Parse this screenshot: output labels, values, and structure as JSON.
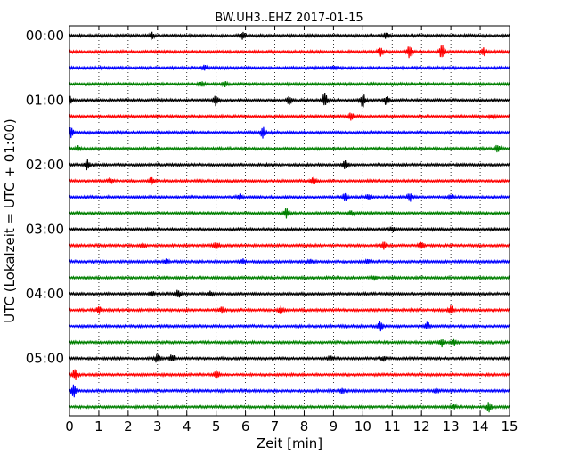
{
  "chart_data": {
    "type": "line",
    "title": "BW.UH3..EHZ 2017-01-15",
    "xlabel": "Zeit  [min]",
    "ylabel": "UTC (Lokalzeit = UTC + 01:00)",
    "xlim": [
      0,
      15
    ],
    "x_ticks": [
      "0",
      "1",
      "2",
      "3",
      "4",
      "5",
      "6",
      "7",
      "8",
      "9",
      "10",
      "11",
      "12",
      "13",
      "14",
      "15"
    ],
    "y_tick_labels": [
      "00:00",
      "01:00",
      "02:00",
      "03:00",
      "04:00",
      "05:00"
    ],
    "trace_interval_minutes": 15,
    "grid": true,
    "colors": [
      "#000000",
      "#ff0000",
      "#0000ff",
      "#008000"
    ],
    "traces": [
      {
        "start": "00:00",
        "color": "#000000",
        "events": [
          [
            2.8,
            0.45
          ],
          [
            5.9,
            0.45
          ],
          [
            10.8,
            0.35
          ]
        ]
      },
      {
        "start": "00:15",
        "color": "#ff0000",
        "events": [
          [
            10.6,
            0.6
          ],
          [
            11.6,
            0.9
          ],
          [
            12.7,
            0.9
          ],
          [
            14.1,
            0.6
          ]
        ]
      },
      {
        "start": "00:30",
        "color": "#0000ff",
        "events": [
          [
            4.6,
            0.3
          ],
          [
            9.0,
            0.2
          ]
        ]
      },
      {
        "start": "00:45",
        "color": "#008000",
        "events": [
          [
            4.5,
            0.3
          ],
          [
            5.3,
            0.3
          ]
        ]
      },
      {
        "start": "01:00",
        "color": "#000000",
        "events": [
          [
            0.0,
            0.6
          ],
          [
            5.0,
            0.7
          ],
          [
            7.5,
            0.5
          ],
          [
            8.7,
            0.9
          ],
          [
            10.0,
            0.9
          ],
          [
            10.8,
            0.6
          ]
        ]
      },
      {
        "start": "01:15",
        "color": "#ff0000",
        "events": [
          [
            9.6,
            0.45
          ],
          [
            14.4,
            0.25
          ]
        ]
      },
      {
        "start": "01:30",
        "color": "#0000ff",
        "events": [
          [
            0.05,
            0.6
          ],
          [
            6.6,
            0.7
          ]
        ]
      },
      {
        "start": "01:45",
        "color": "#008000",
        "events": [
          [
            0.3,
            0.3
          ],
          [
            14.6,
            0.5
          ]
        ]
      },
      {
        "start": "02:00",
        "color": "#000000",
        "events": [
          [
            0.6,
            0.6
          ],
          [
            9.4,
            0.7
          ]
        ]
      },
      {
        "start": "02:15",
        "color": "#ff0000",
        "events": [
          [
            1.4,
            0.35
          ],
          [
            2.8,
            0.45
          ],
          [
            8.3,
            0.6
          ]
        ]
      },
      {
        "start": "02:30",
        "color": "#0000ff",
        "events": [
          [
            5.8,
            0.3
          ],
          [
            9.4,
            0.5
          ],
          [
            10.2,
            0.35
          ],
          [
            11.6,
            0.5
          ],
          [
            13.0,
            0.3
          ]
        ]
      },
      {
        "start": "02:45",
        "color": "#008000",
        "events": [
          [
            7.4,
            0.6
          ],
          [
            9.6,
            0.3
          ]
        ]
      },
      {
        "start": "03:00",
        "color": "#000000",
        "events": [
          [
            11.0,
            0.3
          ]
        ]
      },
      {
        "start": "03:15",
        "color": "#ff0000",
        "events": [
          [
            2.5,
            0.3
          ],
          [
            5.0,
            0.45
          ],
          [
            10.7,
            0.45
          ],
          [
            12.0,
            0.5
          ]
        ]
      },
      {
        "start": "03:30",
        "color": "#0000ff",
        "events": [
          [
            3.3,
            0.3
          ],
          [
            5.9,
            0.3
          ],
          [
            8.2,
            0.3
          ],
          [
            10.2,
            0.25
          ]
        ]
      },
      {
        "start": "03:45",
        "color": "#008000",
        "events": [
          [
            10.4,
            0.25
          ]
        ]
      },
      {
        "start": "04:00",
        "color": "#000000",
        "events": [
          [
            2.8,
            0.3
          ],
          [
            3.7,
            0.6
          ],
          [
            4.8,
            0.3
          ]
        ]
      },
      {
        "start": "04:15",
        "color": "#ff0000",
        "events": [
          [
            1.0,
            0.4
          ],
          [
            5.2,
            0.35
          ],
          [
            7.2,
            0.45
          ],
          [
            13.0,
            0.5
          ]
        ]
      },
      {
        "start": "04:30",
        "color": "#0000ff",
        "events": [
          [
            10.6,
            0.6
          ],
          [
            12.2,
            0.45
          ]
        ]
      },
      {
        "start": "04:45",
        "color": "#008000",
        "events": [
          [
            12.7,
            0.5
          ],
          [
            13.1,
            0.45
          ]
        ]
      },
      {
        "start": "05:00",
        "color": "#000000",
        "events": [
          [
            3.0,
            0.6
          ],
          [
            3.5,
            0.5
          ],
          [
            8.9,
            0.3
          ],
          [
            10.7,
            0.3
          ]
        ]
      },
      {
        "start": "05:15",
        "color": "#ff0000",
        "events": [
          [
            0.2,
            0.7
          ],
          [
            5.0,
            0.5
          ]
        ]
      },
      {
        "start": "05:30",
        "color": "#0000ff",
        "events": [
          [
            0.15,
            0.8
          ],
          [
            9.3,
            0.3
          ],
          [
            12.5,
            0.3
          ]
        ]
      },
      {
        "start": "05:45",
        "color": "#008000",
        "events": [
          [
            13.1,
            0.35
          ],
          [
            14.3,
            0.6
          ]
        ]
      }
    ]
  }
}
